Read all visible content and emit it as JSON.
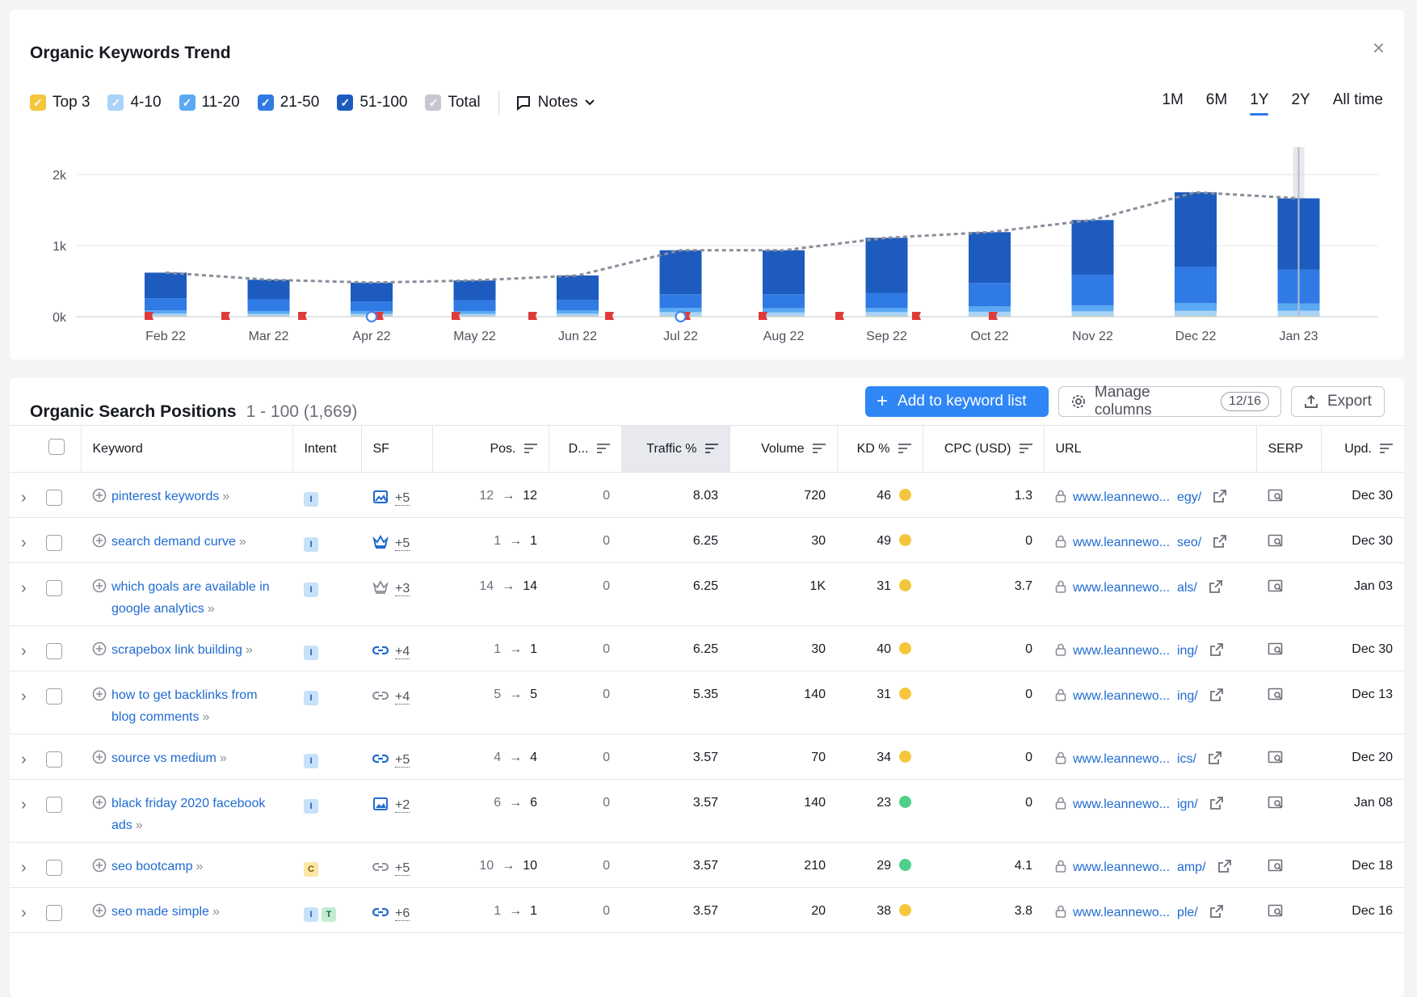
{
  "trend": {
    "title": "Organic Keywords Trend",
    "close_label": "×",
    "legend": [
      {
        "label": "Top 3",
        "color": "#f5c63c"
      },
      {
        "label": "4-10",
        "color": "#a9d3f8"
      },
      {
        "label": "11-20",
        "color": "#5aa9f2"
      },
      {
        "label": "21-50",
        "color": "#2f7ae5"
      },
      {
        "label": "51-100",
        "color": "#1d5bbf"
      },
      {
        "label": "Total",
        "color": "#c5c8d0"
      }
    ],
    "notes_label": "Notes",
    "periods": [
      "1M",
      "6M",
      "1Y",
      "2Y",
      "All time"
    ],
    "active_period": "1Y"
  },
  "chart_data": {
    "type": "bar",
    "categories": [
      "Feb 22",
      "Mar 22",
      "Apr 22",
      "May 22",
      "Jun 22",
      "Jul 22",
      "Aug 22",
      "Sep 22",
      "Oct 22",
      "Nov 22",
      "Dec 22",
      "Jan 23"
    ],
    "y_ticks": [
      "0k",
      "1k",
      "2k"
    ],
    "ylim": [
      0,
      2500
    ],
    "stacked": true,
    "series": [
      {
        "name": "Top 3",
        "color": "#f5c63c",
        "values": [
          5,
          5,
          5,
          5,
          5,
          5,
          5,
          5,
          5,
          5,
          5,
          5
        ]
      },
      {
        "name": "4-10",
        "color": "#a9d3f8",
        "values": [
          40,
          35,
          35,
          35,
          40,
          60,
          55,
          60,
          65,
          70,
          80,
          80
        ]
      },
      {
        "name": "11-20",
        "color": "#5aa9f2",
        "values": [
          45,
          40,
          40,
          40,
          45,
          60,
          60,
          60,
          75,
          85,
          105,
          100
        ]
      },
      {
        "name": "21-50",
        "color": "#2f7ae5",
        "values": [
          170,
          165,
          135,
          150,
          145,
          190,
          195,
          210,
          330,
          430,
          510,
          480
        ]
      },
      {
        "name": "51-100",
        "color": "#1d5bbf",
        "values": [
          360,
          275,
          265,
          280,
          345,
          620,
          620,
          775,
          715,
          770,
          1050,
          1000
        ]
      }
    ],
    "total_line": [
      620,
      520,
      480,
      510,
      580,
      935,
      935,
      1110,
      1190,
      1360,
      1750,
      1665
    ],
    "line_style": "dashed",
    "grid": true,
    "notes_markers": 12,
    "google_markers": [
      "Apr 22",
      "Jul 22"
    ]
  },
  "positions": {
    "title": "Organic Search Positions",
    "range": "1 - 100 (1,669)",
    "add_label": "Add to keyword list",
    "manage_label": "Manage columns",
    "manage_count": "12/16",
    "export_label": "Export",
    "columns": {
      "keyword": "Keyword",
      "intent": "Intent",
      "sf": "SF",
      "pos": "Pos.",
      "diff": "D...",
      "traffic": "Traffic %",
      "volume": "Volume",
      "kd": "KD %",
      "cpc": "CPC (USD)",
      "url": "URL",
      "serp": "SERP",
      "upd": "Upd."
    },
    "rows": [
      {
        "keyword": "pinterest keywords",
        "intent": [
          "I"
        ],
        "sf_icon": "image-icon",
        "sf_more": "+5",
        "pos_from": "12",
        "pos_to": "12",
        "diff": "0",
        "traffic": "8.03",
        "volume": "720",
        "kd": "46",
        "kd_color": "#f5c63c",
        "cpc": "1.3",
        "url_start": "www.leannewo...",
        "url_end": "egy/",
        "upd": "Dec 30"
      },
      {
        "keyword": "search demand curve",
        "intent": [
          "I"
        ],
        "sf_icon": "crown-icon",
        "sf_more": "+5",
        "pos_from": "1",
        "pos_to": "1",
        "diff": "0",
        "traffic": "6.25",
        "volume": "30",
        "kd": "49",
        "kd_color": "#f5c63c",
        "cpc": "0",
        "url_start": "www.leannewo...",
        "url_end": "seo/",
        "upd": "Dec 30"
      },
      {
        "keyword": "which goals are available in google analytics",
        "intent": [
          "I"
        ],
        "sf_icon": "crown-outline-icon",
        "sf_more": "+3",
        "pos_from": "14",
        "pos_to": "14",
        "diff": "0",
        "traffic": "6.25",
        "volume": "1K",
        "kd": "31",
        "kd_color": "#f5c63c",
        "cpc": "3.7",
        "url_start": "www.leannewo...",
        "url_end": "als/",
        "upd": "Jan 03"
      },
      {
        "keyword": "scrapebox link building",
        "intent": [
          "I"
        ],
        "sf_icon": "link-icon",
        "sf_more": "+4",
        "pos_from": "1",
        "pos_to": "1",
        "diff": "0",
        "traffic": "6.25",
        "volume": "30",
        "kd": "40",
        "kd_color": "#f5c63c",
        "cpc": "0",
        "url_start": "www.leannewo...",
        "url_end": "ing/",
        "upd": "Dec 30"
      },
      {
        "keyword": "how to get backlinks from blog comments",
        "intent": [
          "I"
        ],
        "sf_icon": "link-outline-icon",
        "sf_more": "+4",
        "pos_from": "5",
        "pos_to": "5",
        "diff": "0",
        "traffic": "5.35",
        "volume": "140",
        "kd": "31",
        "kd_color": "#f5c63c",
        "cpc": "0",
        "url_start": "www.leannewo...",
        "url_end": "ing/",
        "upd": "Dec 13"
      },
      {
        "keyword": "source vs medium",
        "intent": [
          "I"
        ],
        "sf_icon": "link-icon",
        "sf_more": "+5",
        "pos_from": "4",
        "pos_to": "4",
        "diff": "0",
        "traffic": "3.57",
        "volume": "70",
        "kd": "34",
        "kd_color": "#f5c63c",
        "cpc": "0",
        "url_start": "www.leannewo...",
        "url_end": "ics/",
        "upd": "Dec 20"
      },
      {
        "keyword": "black friday 2020 facebook ads",
        "intent": [
          "I"
        ],
        "sf_icon": "images-icon",
        "sf_more": "+2",
        "pos_from": "6",
        "pos_to": "6",
        "diff": "0",
        "traffic": "3.57",
        "volume": "140",
        "kd": "23",
        "kd_color": "#4fcf8a",
        "cpc": "0",
        "url_start": "www.leannewo...",
        "url_end": "ign/",
        "upd": "Jan 08"
      },
      {
        "keyword": "seo bootcamp",
        "intent": [
          "C"
        ],
        "sf_icon": "link-outline-icon",
        "sf_more": "+5",
        "pos_from": "10",
        "pos_to": "10",
        "diff": "0",
        "traffic": "3.57",
        "volume": "210",
        "kd": "29",
        "kd_color": "#4fcf8a",
        "cpc": "4.1",
        "url_start": "www.leannewo...",
        "url_end": "amp/",
        "upd": "Dec 18"
      },
      {
        "keyword": "seo made simple",
        "intent": [
          "I",
          "T"
        ],
        "sf_icon": "link-icon",
        "sf_more": "+6",
        "pos_from": "1",
        "pos_to": "1",
        "diff": "0",
        "traffic": "3.57",
        "volume": "20",
        "kd": "38",
        "kd_color": "#f5c63c",
        "cpc": "3.8",
        "url_start": "www.leannewo...",
        "url_end": "ple/",
        "upd": "Dec 16"
      }
    ]
  }
}
